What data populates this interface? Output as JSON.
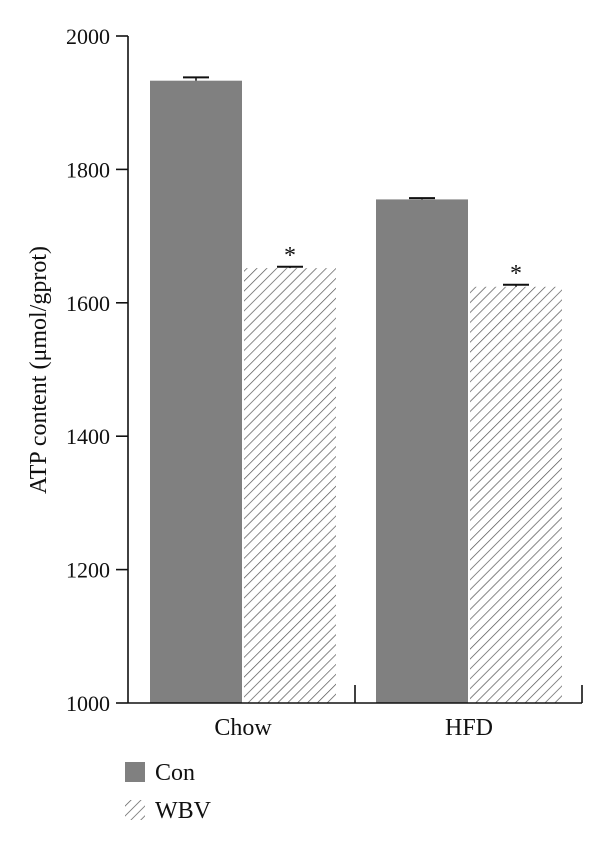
{
  "chart_data": {
    "type": "bar",
    "categories": [
      "Chow",
      "HFD"
    ],
    "series": [
      {
        "name": "Con",
        "values": [
          1933,
          1755
        ],
        "errors": [
          5,
          2
        ],
        "color": "#808080",
        "pattern": "solid"
      },
      {
        "name": "WBV",
        "values": [
          1652,
          1624
        ],
        "errors": [
          2,
          3
        ],
        "color": "#555555",
        "pattern": "diagonal-hatch"
      }
    ],
    "significance": [
      [
        "",
        ""
      ],
      [
        "*",
        "*"
      ]
    ],
    "ylabel": "ATP content (μmol/gprot)",
    "xlabel": "",
    "ylim": [
      1000,
      2000
    ],
    "yticks": [
      1000,
      1200,
      1400,
      1600,
      1800,
      2000
    ],
    "legend_position": "bottom-left",
    "grid": false
  }
}
